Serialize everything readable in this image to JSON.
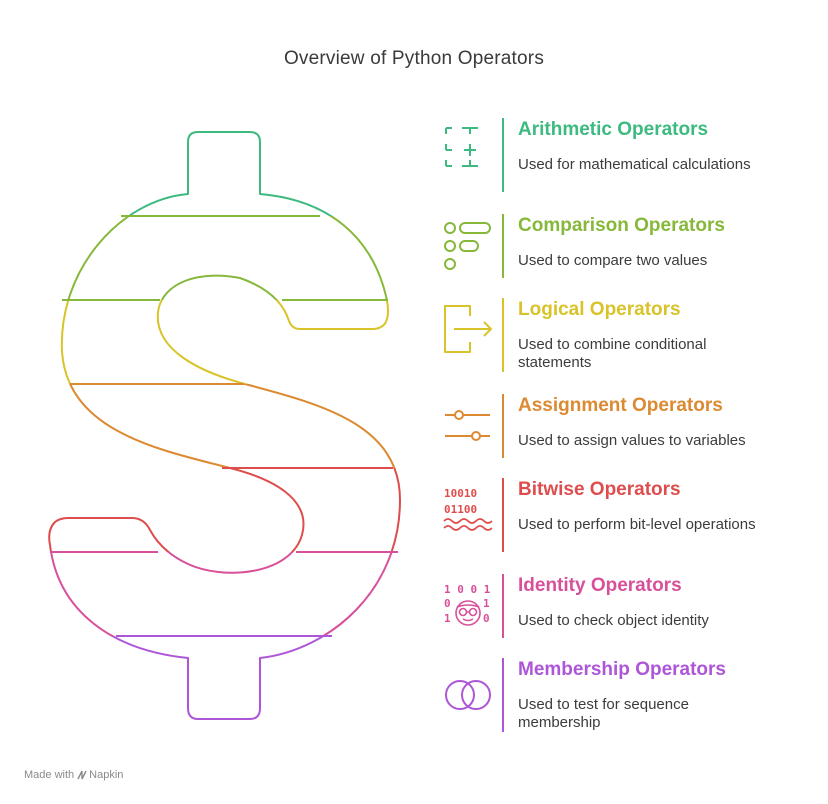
{
  "title": "Overview of Python Operators",
  "items": [
    {
      "title": "Arithmetic Operators",
      "desc": "Used for mathematical calculations",
      "color": "#3cba7f",
      "icon": "arithmetic-grid-icon"
    },
    {
      "title": "Comparison Operators",
      "desc": "Used to compare two values",
      "color": "#86b83a",
      "icon": "toggle-list-icon"
    },
    {
      "title": "Logical Operators",
      "desc": "Used to combine conditional statements",
      "color": "#d8c42a",
      "icon": "arrow-exit-icon"
    },
    {
      "title": "Assignment Operators",
      "desc": "Used to assign values to variables",
      "color": "#dc8a32",
      "icon": "slider-icon"
    },
    {
      "title": "Bitwise Operators",
      "desc": "Used to perform bit-level operations",
      "color": "#de4d4d",
      "icon": "binary-waves-icon"
    },
    {
      "title": "Identity Operators",
      "desc": "Used to check object identity",
      "color": "#d8509a",
      "icon": "binary-face-icon"
    },
    {
      "title": "Membership Operators",
      "desc": "Used to test for sequence membership",
      "color": "#ae56d8",
      "icon": "overlap-circles-icon"
    }
  ],
  "icon_text": {
    "bitwise_row1": "10010",
    "bitwise_row2": "01100",
    "identity_top": "1 0 0 1",
    "identity_left1": "0",
    "identity_left2": "1",
    "identity_right1": "1",
    "identity_right2": "0"
  },
  "footer": {
    "made_with": "Made with",
    "brand": "Napkin"
  }
}
